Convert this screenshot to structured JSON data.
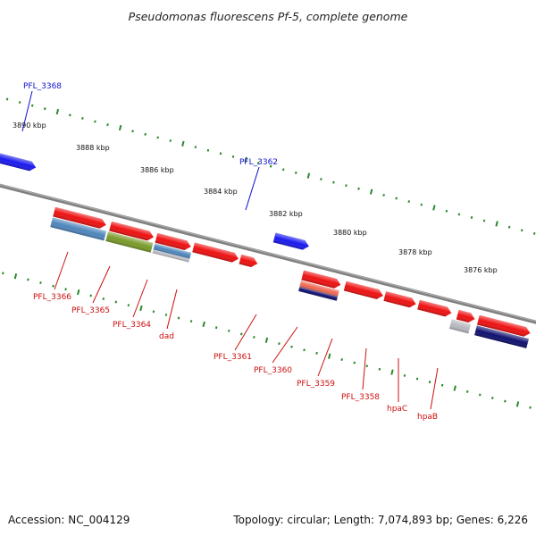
{
  "title": "Pseudomonas fluorescens Pf-5, complete genome",
  "footer": {
    "accession": "Accession: NC_004129",
    "topology": "Topology: circular; Length: 7,074,893 bp; Genes: 6,226"
  },
  "colors": {
    "backbone": "#808080",
    "ticks": "#2a8a2a",
    "forward_label": "#1010cc",
    "reverse_label": "#cc1010",
    "red": "#ee1111",
    "blue": "#1a1aee",
    "steel": "#4f86bd",
    "olive": "#7a9a2a",
    "gray": "#b8b8c0",
    "salmon": "#f06a55",
    "navy": "#101070",
    "green": "#2aa02a",
    "bright_green": "#33cc33"
  },
  "ruler_labels": [
    "3890 kbp",
    "3888 kbp",
    "3886 kbp",
    "3884 kbp",
    "3882 kbp",
    "3880 kbp",
    "3878 kbp",
    "3876 kbp"
  ],
  "forward_gene_labels": [
    "PFL_3368",
    "PFL_3362"
  ],
  "reverse_gene_labels": [
    "PFL_3366",
    "PFL_3365",
    "PFL_3364",
    "dad",
    "PFL_3361",
    "PFL_3360",
    "PFL_3359",
    "PFL_3358",
    "hpaC",
    "hpaB"
  ]
}
